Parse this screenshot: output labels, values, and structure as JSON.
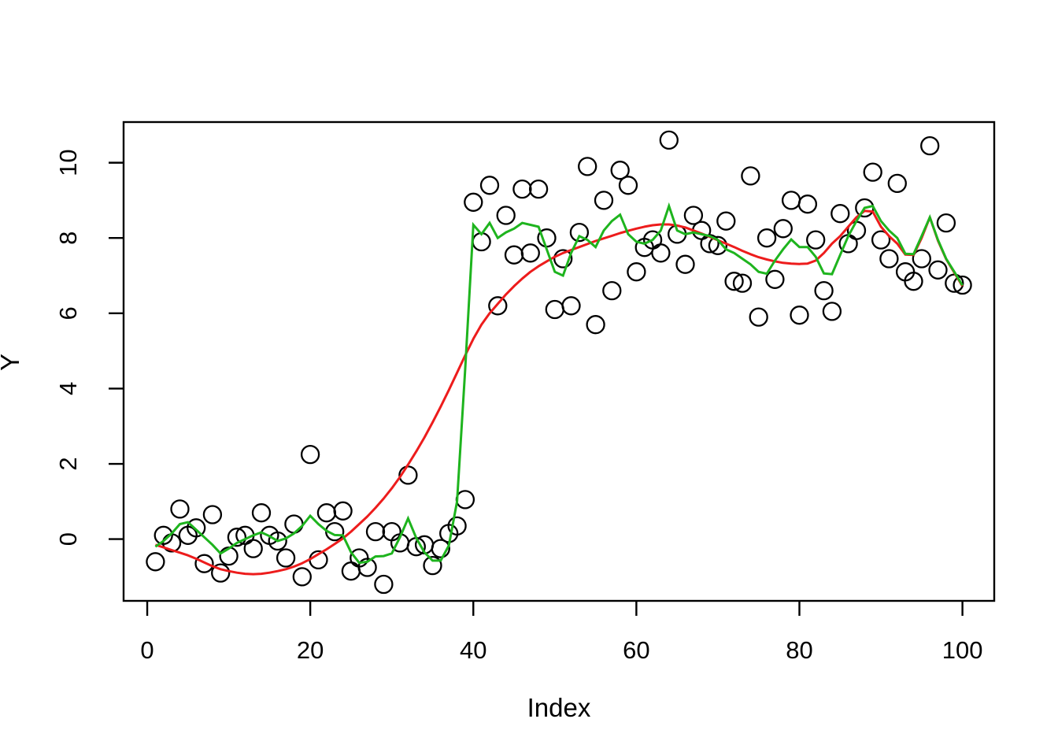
{
  "figure": {
    "background": "#ffffff",
    "plot_border_color": "#000000"
  },
  "chart_data": {
    "type": "scatter",
    "title": "",
    "xlabel": "Index",
    "ylabel": "Y",
    "x_ticks": [
      0,
      20,
      40,
      60,
      80,
      100
    ],
    "y_ticks": [
      0,
      2,
      4,
      6,
      8,
      10
    ],
    "xlim": [
      -2.9,
      103.9
    ],
    "ylim": [
      -1.64,
      11.08
    ],
    "grid": false,
    "legend": "none",
    "x": [
      1,
      2,
      3,
      4,
      5,
      6,
      7,
      8,
      9,
      10,
      11,
      12,
      13,
      14,
      15,
      16,
      17,
      18,
      19,
      20,
      21,
      22,
      23,
      24,
      25,
      26,
      27,
      28,
      29,
      30,
      31,
      32,
      33,
      34,
      35,
      36,
      37,
      38,
      39,
      40,
      41,
      42,
      43,
      44,
      45,
      46,
      47,
      48,
      49,
      50,
      51,
      52,
      53,
      54,
      55,
      56,
      57,
      58,
      59,
      60,
      61,
      62,
      63,
      64,
      65,
      66,
      67,
      68,
      69,
      70,
      71,
      72,
      73,
      74,
      75,
      76,
      77,
      78,
      79,
      80,
      81,
      82,
      83,
      84,
      85,
      86,
      87,
      88,
      89,
      90,
      91,
      92,
      93,
      94,
      95,
      96,
      97,
      98,
      99,
      100
    ],
    "series": [
      {
        "name": "observations",
        "kind": "points",
        "color": "#000000",
        "marker": "open-circle",
        "values": [
          -0.6,
          0.1,
          -0.1,
          0.8,
          0.1,
          0.3,
          -0.65,
          0.65,
          -0.9,
          -0.45,
          0.05,
          0.1,
          -0.25,
          0.7,
          0.1,
          -0.05,
          -0.5,
          0.4,
          -1.0,
          2.25,
          -0.55,
          0.7,
          0.2,
          0.75,
          -0.85,
          -0.5,
          -0.75,
          0.2,
          -1.2,
          0.2,
          -0.1,
          1.7,
          -0.2,
          -0.15,
          -0.7,
          -0.25,
          0.15,
          0.35,
          1.05,
          8.95,
          7.9,
          9.4,
          6.2,
          8.6,
          7.55,
          9.3,
          7.6,
          9.3,
          8.0,
          6.1,
          7.45,
          6.2,
          8.15,
          9.9,
          5.7,
          9.0,
          6.6,
          9.8,
          9.4,
          7.1,
          7.75,
          7.95,
          7.6,
          10.6,
          8.1,
          7.3,
          8.6,
          8.2,
          7.85,
          7.8,
          8.45,
          6.85,
          6.8,
          9.65,
          5.9,
          8.0,
          6.9,
          8.25,
          9.0,
          5.95,
          8.9,
          7.95,
          6.6,
          6.05,
          8.65,
          7.85,
          8.2,
          8.8,
          9.75,
          7.95,
          7.45,
          9.45,
          7.1,
          6.85,
          7.45,
          10.45,
          7.15,
          8.4,
          6.8,
          6.75
        ]
      },
      {
        "name": "moving-average-line",
        "kind": "line",
        "color": "#1eb41e",
        "values": [
          -0.2,
          -0.05,
          0.15,
          0.4,
          0.45,
          0.25,
          0.05,
          -0.15,
          -0.38,
          -0.25,
          -0.1,
          0.0,
          0.1,
          0.18,
          0.08,
          -0.05,
          0.02,
          0.15,
          0.35,
          0.62,
          0.4,
          0.22,
          0.11,
          0.1,
          -0.35,
          -0.63,
          -0.6,
          -0.46,
          -0.45,
          -0.38,
          0.05,
          0.55,
          0.03,
          -0.35,
          -0.57,
          -0.57,
          -0.17,
          1.0,
          4.5,
          8.35,
          8.1,
          8.4,
          8.0,
          8.15,
          8.25,
          8.4,
          8.35,
          8.3,
          7.7,
          7.1,
          7.0,
          7.6,
          8.05,
          7.95,
          7.76,
          8.2,
          8.45,
          8.62,
          8.1,
          7.9,
          7.85,
          7.95,
          8.2,
          8.85,
          8.2,
          8.1,
          8.15,
          8.1,
          8.05,
          7.95,
          7.7,
          7.6,
          7.45,
          7.3,
          7.1,
          7.05,
          7.4,
          7.7,
          7.96,
          7.76,
          7.76,
          7.5,
          7.06,
          7.04,
          7.55,
          8.05,
          8.45,
          8.8,
          8.85,
          8.45,
          8.2,
          8.0,
          7.58,
          7.57,
          8.05,
          8.55,
          7.95,
          7.45,
          7.1,
          6.74
        ]
      },
      {
        "name": "smooth-fit-line",
        "kind": "line",
        "color": "#ed1c1c",
        "values": [
          -0.15,
          -0.22,
          -0.29,
          -0.36,
          -0.43,
          -0.52,
          -0.62,
          -0.72,
          -0.8,
          -0.85,
          -0.89,
          -0.92,
          -0.93,
          -0.92,
          -0.89,
          -0.85,
          -0.8,
          -0.73,
          -0.64,
          -0.53,
          -0.4,
          -0.27,
          -0.13,
          0.02,
          0.2,
          0.4,
          0.6,
          0.83,
          1.08,
          1.35,
          1.65,
          1.98,
          2.33,
          2.7,
          3.1,
          3.52,
          3.96,
          4.42,
          4.88,
          5.32,
          5.7,
          6.0,
          6.25,
          6.5,
          6.72,
          6.92,
          7.1,
          7.25,
          7.38,
          7.5,
          7.6,
          7.68,
          7.76,
          7.84,
          7.92,
          7.99,
          8.06,
          8.13,
          8.19,
          8.25,
          8.3,
          8.34,
          8.36,
          8.36,
          8.33,
          8.28,
          8.2,
          8.12,
          8.03,
          7.94,
          7.85,
          7.76,
          7.66,
          7.57,
          7.49,
          7.43,
          7.38,
          7.34,
          7.32,
          7.31,
          7.32,
          7.4,
          7.6,
          7.85,
          8.05,
          8.3,
          8.55,
          8.72,
          8.7,
          8.3,
          8.05,
          7.85,
          7.56,
          7.55,
          8.0,
          8.55,
          7.93,
          7.44,
          7.08,
          6.72
        ]
      }
    ]
  }
}
